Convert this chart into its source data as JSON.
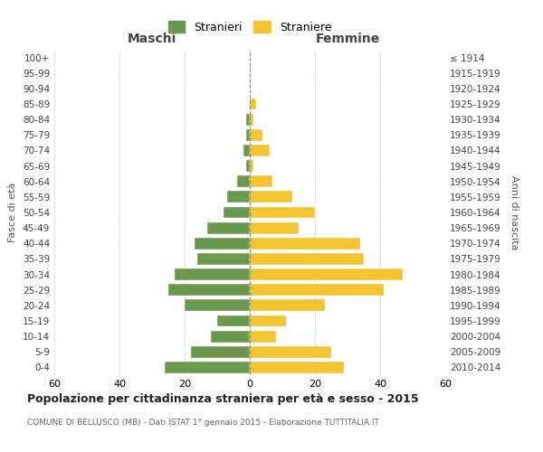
{
  "age_groups": [
    "0-4",
    "5-9",
    "10-14",
    "15-19",
    "20-24",
    "25-29",
    "30-34",
    "35-39",
    "40-44",
    "45-49",
    "50-54",
    "55-59",
    "60-64",
    "65-69",
    "70-74",
    "75-79",
    "80-84",
    "85-89",
    "90-94",
    "95-99",
    "100+"
  ],
  "birth_years": [
    "2010-2014",
    "2005-2009",
    "2000-2004",
    "1995-1999",
    "1990-1994",
    "1985-1989",
    "1980-1984",
    "1975-1979",
    "1970-1974",
    "1965-1969",
    "1960-1964",
    "1955-1959",
    "1950-1954",
    "1945-1949",
    "1940-1944",
    "1935-1939",
    "1930-1934",
    "1925-1929",
    "1920-1924",
    "1915-1919",
    "≤ 1914"
  ],
  "maschi": [
    26,
    18,
    12,
    10,
    20,
    25,
    23,
    16,
    17,
    13,
    8,
    7,
    4,
    1,
    2,
    1,
    1,
    0,
    0,
    0,
    0
  ],
  "femmine": [
    29,
    25,
    8,
    11,
    23,
    41,
    47,
    35,
    34,
    15,
    20,
    13,
    7,
    1,
    6,
    4,
    1,
    2,
    0,
    0,
    0
  ],
  "color_maschi": "#6a994e",
  "color_femmine": "#f4c430",
  "title": "Popolazione per cittadinanza straniera per età e sesso - 2015",
  "subtitle": "COMUNE DI BELLUSCO (MB) - Dati ISTAT 1° gennaio 2015 - Elaborazione TUTTITALIA.IT",
  "xlabel_left": "Maschi",
  "xlabel_right": "Femmine",
  "ylabel_left": "Fasce di età",
  "ylabel_right": "Anni di nascita",
  "legend_maschi": "Stranieri",
  "legend_femmine": "Straniere",
  "xlim": 60,
  "background_color": "#ffffff",
  "grid_color": "#cccccc"
}
